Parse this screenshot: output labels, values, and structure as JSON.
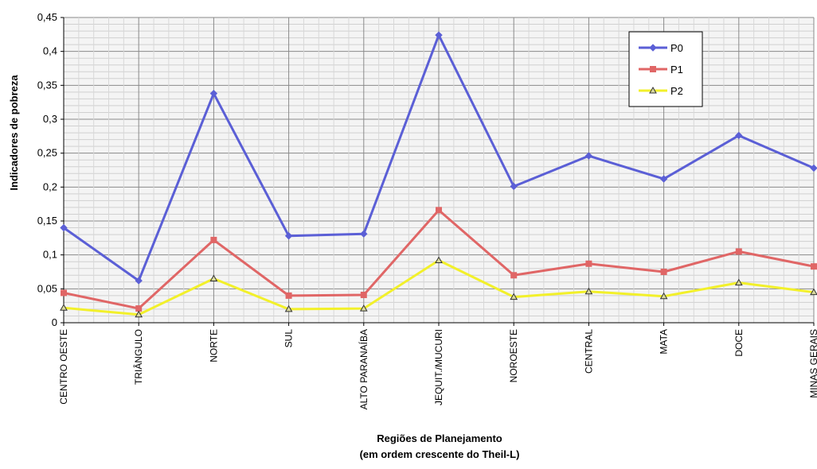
{
  "chart_data": {
    "type": "line",
    "title": "",
    "ylabel": "Indicadores de pobreza",
    "xlabel": [
      "Regiões de Planejamento",
      "(em ordem crescente do Theil-L)"
    ],
    "ylim": [
      0,
      0.45
    ],
    "yticks": [
      "0",
      "0,05",
      "0,1",
      "0,15",
      "0,2",
      "0,25",
      "0,3",
      "0,35",
      "0,4",
      "0,45"
    ],
    "grid": true,
    "legend_position": "top-right",
    "categories": [
      "CENTRO OESTE",
      "TRIÂNGULO",
      "NORTE",
      "SUL",
      "ALTO PARANAÍBA",
      "JEQUIT./MUCURI",
      "NOROESTE",
      "CENTRAL",
      "MATA",
      "DOCE",
      "MINAS GERAIS"
    ],
    "series": [
      {
        "name": "P0",
        "color": "#5b5fd6",
        "marker": "diamond",
        "values": [
          0.14,
          0.062,
          0.338,
          0.128,
          0.131,
          0.424,
          0.201,
          0.246,
          0.212,
          0.276,
          0.228
        ]
      },
      {
        "name": "P1",
        "color": "#e06666",
        "marker": "square",
        "values": [
          0.044,
          0.021,
          0.122,
          0.04,
          0.041,
          0.166,
          0.07,
          0.087,
          0.075,
          0.105,
          0.083
        ]
      },
      {
        "name": "P2",
        "color": "#f2f02a",
        "marker": "triangle",
        "values": [
          0.022,
          0.012,
          0.065,
          0.02,
          0.021,
          0.092,
          0.038,
          0.046,
          0.039,
          0.059,
          0.045
        ]
      }
    ]
  }
}
